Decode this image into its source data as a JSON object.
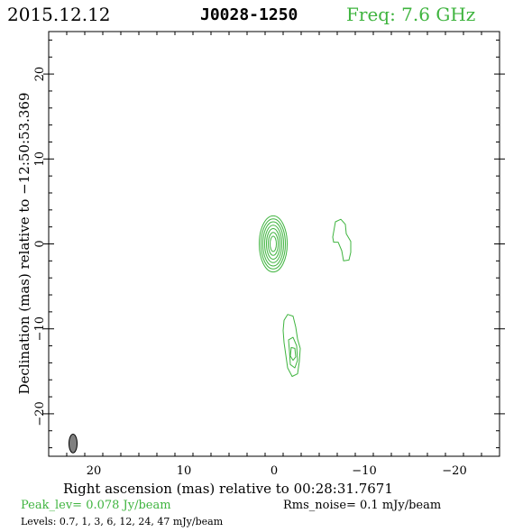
{
  "header": {
    "date": "2015.12.12",
    "source": "J0028-1250",
    "freq": "Freq: 7.6 GHz"
  },
  "axes": {
    "xlabel": "Right ascension (mas) relative to 00:28:31.7671",
    "ylabel": "Declination (mas) relative to −12:50:53.369"
  },
  "footer": {
    "peak": "Peak_lev=  0.078 Jy/beam",
    "rms": "Rms_noise=   0.1 mJy/beam",
    "levels": "Levels: 0.7,    1,    3,    6,   12,   24,   47 mJy/beam"
  },
  "colors": {
    "contour": "#3fb43f",
    "beam": "#808080"
  },
  "chart_data": {
    "type": "contour",
    "title": "J0028-1250",
    "xlabel": "Right ascension (mas) relative to 00:28:31.7671",
    "ylabel": "Declination (mas) relative to −12:50:53.369",
    "xlim": [
      25,
      -25
    ],
    "ylim": [
      -25,
      25
    ],
    "x_ticks": [
      20,
      10,
      0,
      -10,
      -20
    ],
    "x_tick_labels": [
      "20",
      "10",
      "0",
      "−10",
      "−20"
    ],
    "y_ticks": [
      20,
      10,
      0,
      -10,
      -20
    ],
    "y_tick_labels": [
      "20",
      "10",
      "0",
      "−10",
      "−20"
    ],
    "levels_mJy": [
      0.7,
      1,
      3,
      6,
      12,
      24,
      47
    ],
    "peak_Jy_per_beam": 0.078,
    "rms_mJy_per_beam": 0.1,
    "beam": {
      "x": 22.3,
      "y": -23.5,
      "major_mas": 2.2,
      "minor_mas": 0.9,
      "pa_deg": 0
    },
    "components": [
      {
        "name": "core",
        "contours": [
          {
            "cx": 0.1,
            "cy": 0.0,
            "rx": 1.55,
            "ry": 3.3
          },
          {
            "cx": 0.1,
            "cy": 0.0,
            "rx": 1.35,
            "ry": 2.95
          },
          {
            "cx": 0.1,
            "cy": 0.0,
            "rx": 1.15,
            "ry": 2.6
          },
          {
            "cx": 0.1,
            "cy": 0.0,
            "rx": 0.95,
            "ry": 2.2
          },
          {
            "cx": 0.1,
            "cy": 0.0,
            "rx": 0.75,
            "ry": 1.8
          },
          {
            "cx": 0.1,
            "cy": 0.0,
            "rx": 0.55,
            "ry": 1.35
          },
          {
            "cx": 0.1,
            "cy": 0.0,
            "rx": 0.35,
            "ry": 0.9
          }
        ]
      },
      {
        "name": "east-feature",
        "polygons": [
          [
            [
              -6.5,
              0.8
            ],
            [
              -6.8,
              2.6
            ],
            [
              -7.4,
              2.9
            ],
            [
              -7.9,
              2.3
            ],
            [
              -8.0,
              1.2
            ],
            [
              -8.5,
              0.3
            ],
            [
              -8.5,
              -1.0
            ],
            [
              -8.3,
              -1.9
            ],
            [
              -7.7,
              -2.0
            ],
            [
              -7.5,
              -0.8
            ],
            [
              -7.1,
              0.2
            ],
            [
              -6.6,
              0.2
            ]
          ]
        ]
      },
      {
        "name": "south-feature",
        "polygons": [
          [
            [
              -1.1,
              -9.0
            ],
            [
              -1.5,
              -8.3
            ],
            [
              -2.1,
              -8.5
            ],
            [
              -2.4,
              -9.8
            ],
            [
              -2.6,
              -11.2
            ],
            [
              -2.9,
              -12.3
            ],
            [
              -2.8,
              -13.8
            ],
            [
              -2.6,
              -15.3
            ],
            [
              -2.0,
              -15.6
            ],
            [
              -1.5,
              -14.6
            ],
            [
              -1.3,
              -13.1
            ],
            [
              -1.1,
              -11.6
            ],
            [
              -1.0,
              -10.2
            ]
          ],
          [
            [
              -1.6,
              -11.3
            ],
            [
              -2.1,
              -11.0
            ],
            [
              -2.5,
              -12.0
            ],
            [
              -2.6,
              -13.7
            ],
            [
              -2.3,
              -14.6
            ],
            [
              -1.8,
              -14.2
            ],
            [
              -1.7,
              -12.6
            ]
          ],
          [
            [
              -1.9,
              -12.2
            ],
            [
              -2.3,
              -12.3
            ],
            [
              -2.4,
              -13.3
            ],
            [
              -2.1,
              -13.7
            ],
            [
              -1.8,
              -13.2
            ]
          ]
        ]
      }
    ]
  }
}
